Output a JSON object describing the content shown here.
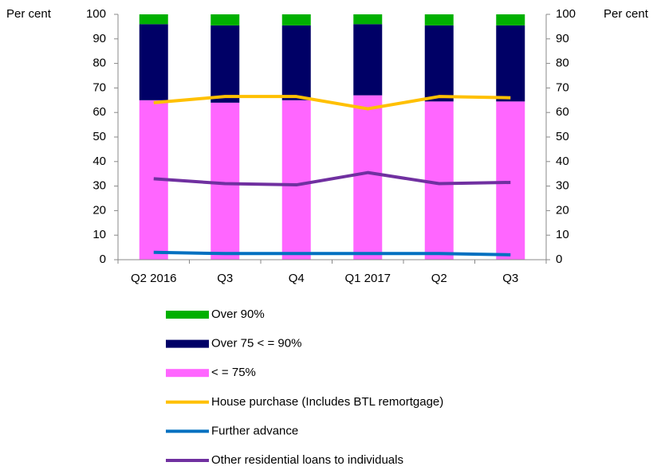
{
  "chart_data": {
    "type": "bar",
    "stacked": true,
    "y_label": "Per cent",
    "y2_label": "Per cent",
    "categories": [
      "Q2 2016",
      "Q3",
      "Q4",
      "Q1 2017",
      "Q2",
      "Q3"
    ],
    "series": [
      {
        "name": "Over 90%",
        "type": "bar",
        "color": "#00b000",
        "values": [
          4,
          4.5,
          4.5,
          4,
          4.5,
          4.5
        ]
      },
      {
        "name": "Over 75 < = 90%",
        "type": "bar",
        "color": "#000066",
        "values": [
          31,
          31.5,
          30.5,
          29,
          31,
          31
        ]
      },
      {
        "name": "< = 75%",
        "type": "bar",
        "color": "#ff66ff",
        "values": [
          65,
          64,
          65,
          67,
          64.5,
          64.5
        ]
      },
      {
        "name": "House purchase (Includes BTL remortgage)",
        "type": "line",
        "axis": "y2",
        "color": "#ffc000",
        "values": [
          64,
          66.5,
          66.5,
          61.5,
          66.5,
          66
        ]
      },
      {
        "name": "Further advance",
        "type": "line",
        "axis": "y2",
        "color": "#0070c0",
        "values": [
          3,
          2.5,
          2.5,
          2.5,
          2.5,
          2
        ]
      },
      {
        "name": "Other residential loans to individuals",
        "type": "line",
        "axis": "y2",
        "color": "#7030a0",
        "values": [
          33,
          31,
          30.5,
          35.5,
          31,
          31.5
        ]
      }
    ],
    "ylim": [
      0,
      100
    ],
    "yticks": [
      0,
      10,
      20,
      30,
      40,
      50,
      60,
      70,
      80,
      90,
      100
    ],
    "y2lim": [
      0,
      100
    ],
    "y2ticks": [
      0,
      10,
      20,
      30,
      40,
      50,
      60,
      70,
      80,
      90,
      100
    ],
    "legend": "bottom"
  }
}
